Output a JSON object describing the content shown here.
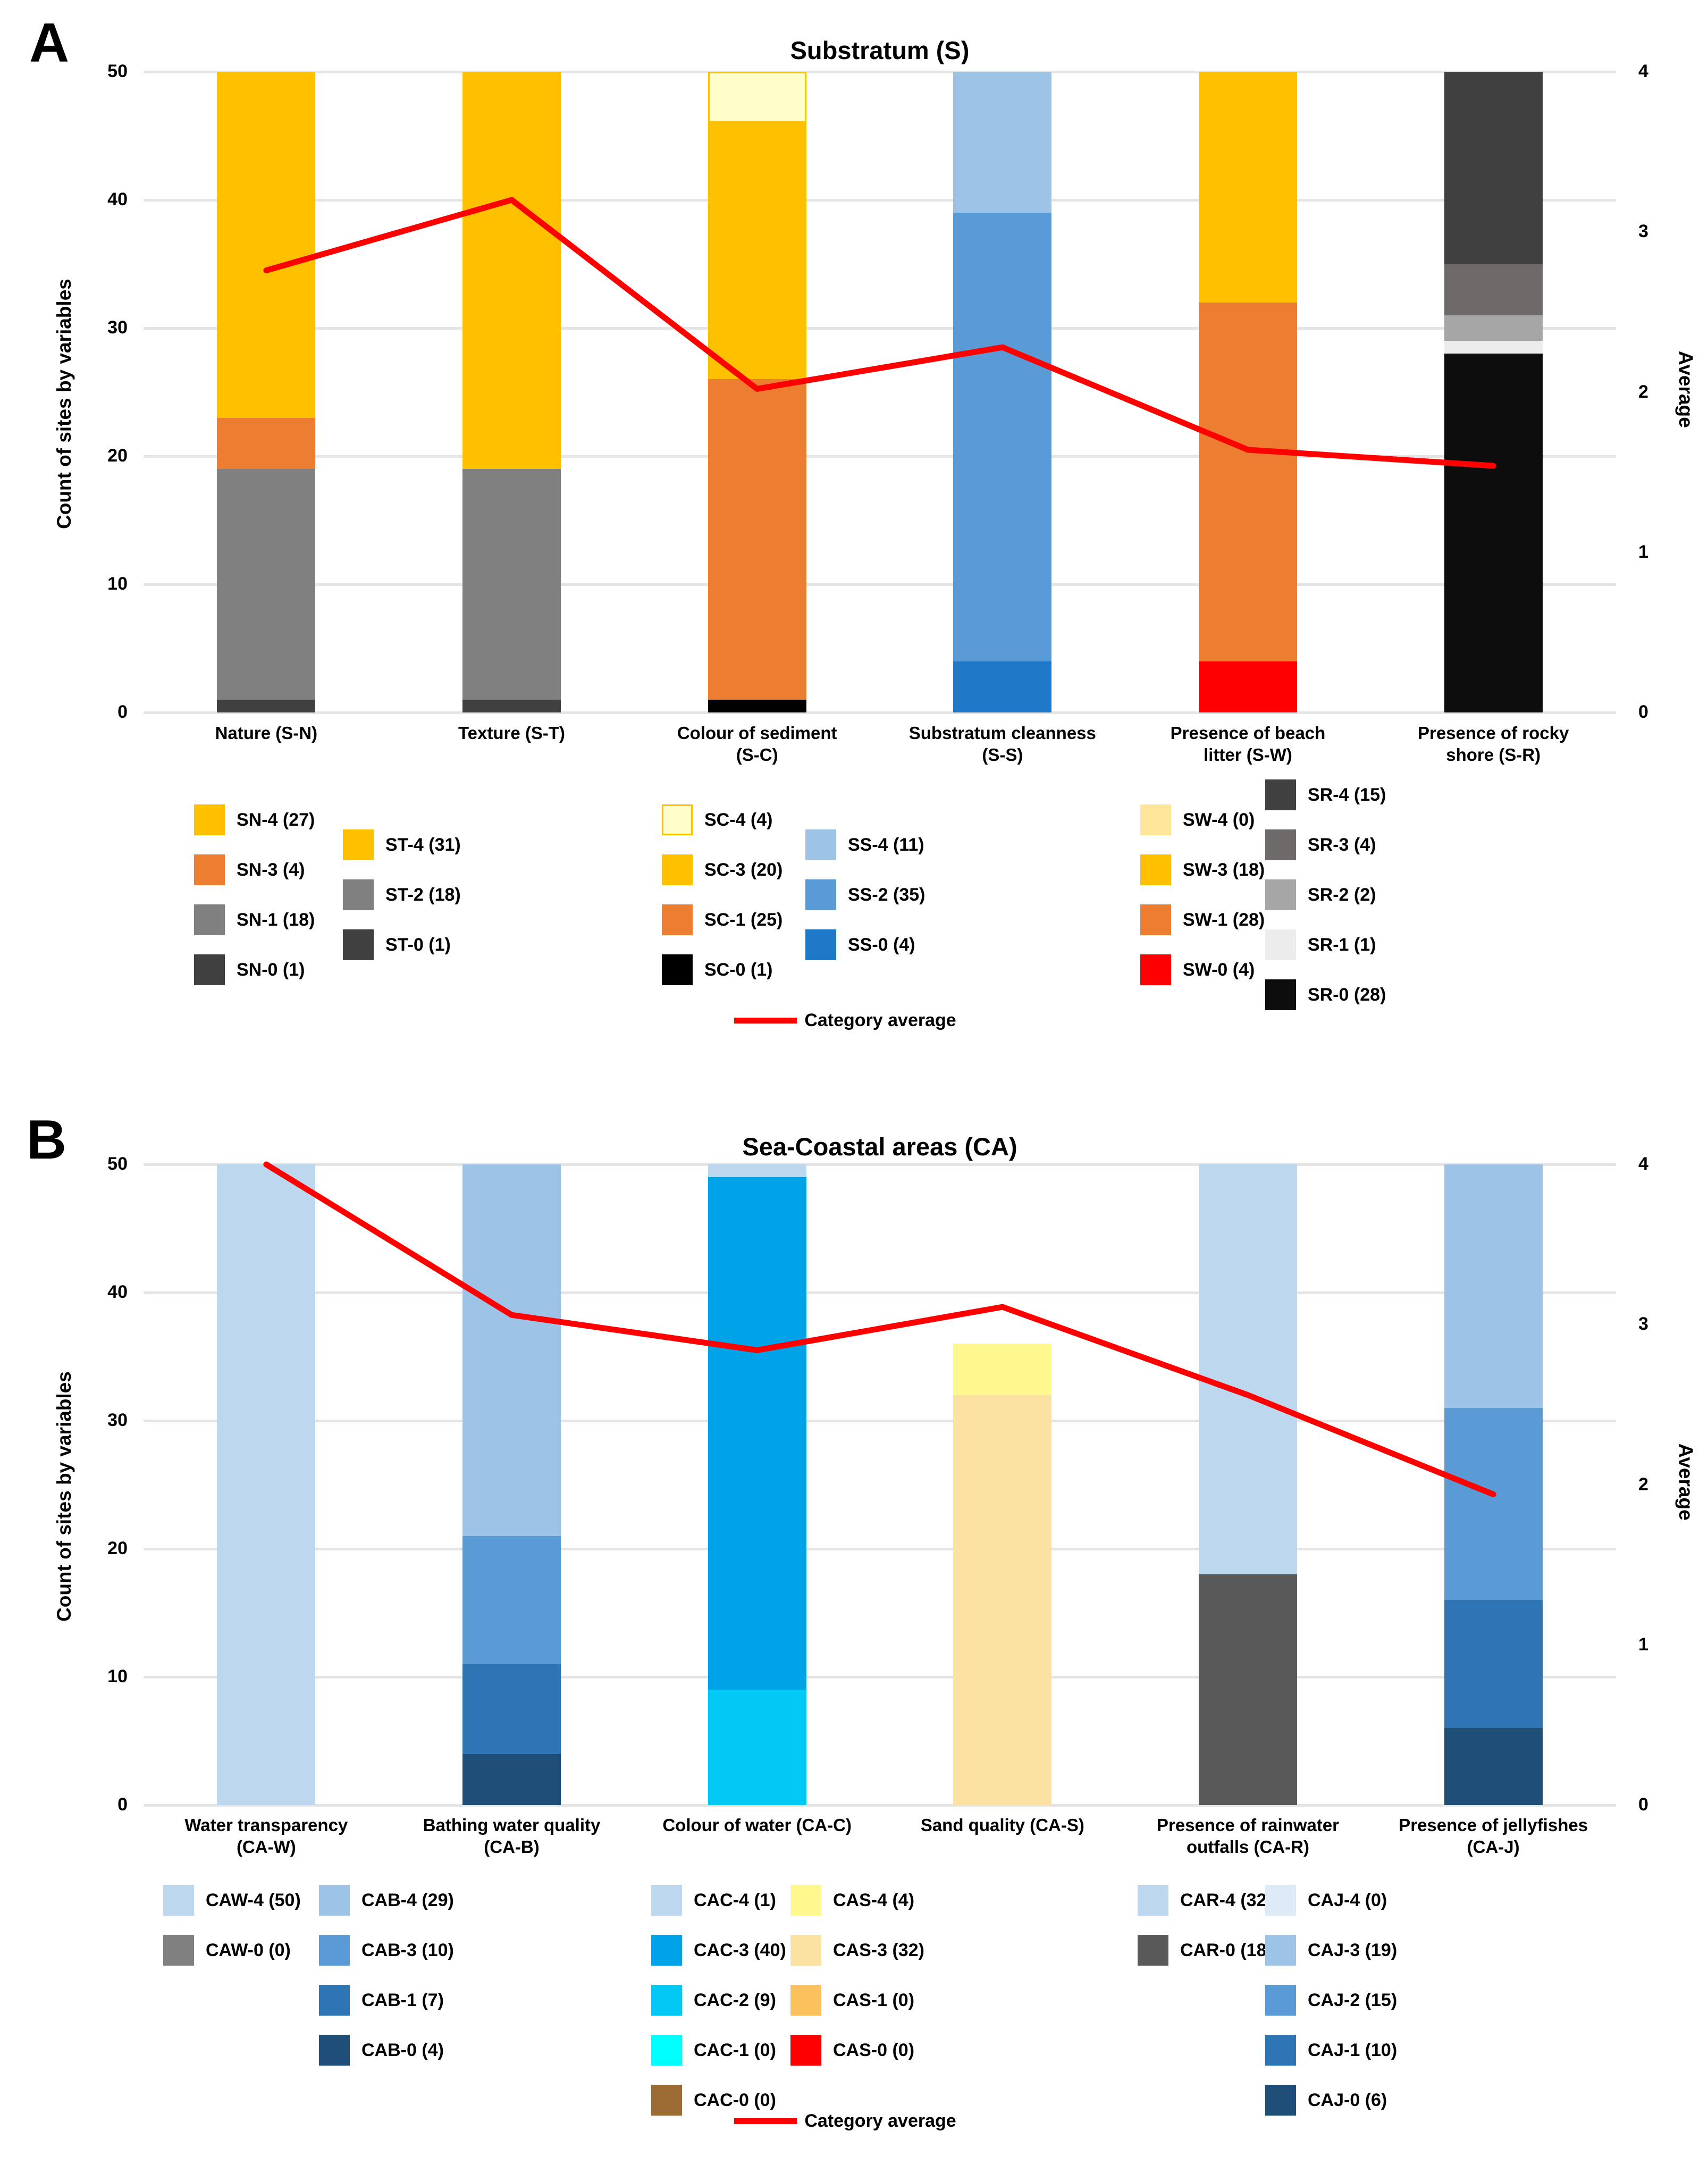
{
  "chart_data": [
    {
      "type": "bar",
      "subtype": "stacked-column-with-line",
      "panel": "A",
      "title": "Substratum (S)",
      "ylabel": "Count of sites by variables",
      "y2label": "Average",
      "ylim": [
        0,
        50
      ],
      "y2lim": [
        0,
        4
      ],
      "yticks": [
        0,
        10,
        20,
        30,
        40,
        50
      ],
      "y2ticks": [
        0,
        1,
        2,
        3,
        4
      ],
      "grid": true,
      "legend_position": "bottom",
      "line_series": {
        "name": "Category average",
        "color": "#FF0000",
        "values": [
          2.76,
          3.2,
          2.02,
          2.28,
          1.64,
          1.54
        ]
      },
      "categories": [
        {
          "label": "Nature (S-N)",
          "entries": [
            {
              "code": "SN-4",
              "count": 27,
              "color": "#FFC000"
            },
            {
              "code": "SN-3",
              "count": 4,
              "color": "#ED7D31"
            },
            {
              "code": "SN-1",
              "count": 18,
              "color": "#808080"
            },
            {
              "code": "SN-0",
              "count": 1,
              "color": "#404040"
            }
          ]
        },
        {
          "label": "Texture (S-T)",
          "entries": [
            {
              "code": "ST-4",
              "count": 31,
              "color": "#FFC000"
            },
            {
              "code": "ST-2",
              "count": 18,
              "color": "#808080"
            },
            {
              "code": "ST-0",
              "count": 1,
              "color": "#404040"
            }
          ]
        },
        {
          "label": "Colour of sediment\n(S-C)",
          "entries": [
            {
              "code": "SC-4",
              "count": 4,
              "color": "#FFFFCC",
              "border": "#FFC000"
            },
            {
              "code": "SC-3",
              "count": 20,
              "color": "#FFC000"
            },
            {
              "code": "SC-1",
              "count": 25,
              "color": "#ED7D31"
            },
            {
              "code": "SC-0",
              "count": 1,
              "color": "#000000"
            }
          ]
        },
        {
          "label": "Substratum cleanness\n(S-S)",
          "entries": [
            {
              "code": "SS-4",
              "count": 11,
              "color": "#9DC3E6"
            },
            {
              "code": "SS-2",
              "count": 35,
              "color": "#5B9BD5"
            },
            {
              "code": "SS-0",
              "count": 4,
              "color": "#1F78C8"
            }
          ]
        },
        {
          "label": "Presence of beach\nlitter (S-W)",
          "entries": [
            {
              "code": "SW-4",
              "count": 0,
              "color": "#FFE699"
            },
            {
              "code": "SW-3",
              "count": 18,
              "color": "#FFC000"
            },
            {
              "code": "SW-1",
              "count": 28,
              "color": "#ED7D31"
            },
            {
              "code": "SW-0",
              "count": 4,
              "color": "#FF0000"
            }
          ]
        },
        {
          "label": "Presence of rocky\nshore (S-R)",
          "entries": [
            {
              "code": "SR-4",
              "count": 15,
              "color": "#404040"
            },
            {
              "code": "SR-3",
              "count": 4,
              "color": "#6E6A6A"
            },
            {
              "code": "SR-2",
              "count": 2,
              "color": "#A6A6A6"
            },
            {
              "code": "SR-1",
              "count": 1,
              "color": "#ECECEC"
            },
            {
              "code": "SR-0",
              "count": 28,
              "color": "#0D0D0D"
            }
          ]
        }
      ]
    },
    {
      "type": "bar",
      "subtype": "stacked-column-with-line",
      "panel": "B",
      "title": "Sea-Coastal areas (CA)",
      "ylabel": "Count of sites by variables",
      "y2label": "Average",
      "ylim": [
        0,
        50
      ],
      "y2lim": [
        0,
        4
      ],
      "yticks": [
        0,
        10,
        20,
        30,
        40,
        50
      ],
      "y2ticks": [
        0,
        1,
        2,
        3,
        4
      ],
      "grid": true,
      "legend_position": "bottom",
      "line_series": {
        "name": "Category average",
        "color": "#FF0000",
        "values": [
          4.0,
          3.06,
          2.84,
          3.11,
          2.56,
          1.94
        ]
      },
      "categories": [
        {
          "label": "Water transparency\n(CA-W)",
          "entries": [
            {
              "code": "CAW-4",
              "count": 50,
              "color": "#BDD7EE"
            },
            {
              "code": "CAW-0",
              "count": 0,
              "color": "#808080"
            }
          ]
        },
        {
          "label": "Bathing water quality\n(CA-B)",
          "entries": [
            {
              "code": "CAB-4",
              "count": 29,
              "color": "#9DC3E6"
            },
            {
              "code": "CAB-3",
              "count": 10,
              "color": "#5B9BD5"
            },
            {
              "code": "CAB-1",
              "count": 7,
              "color": "#2E75B6"
            },
            {
              "code": "CAB-0",
              "count": 4,
              "color": "#1F4E79"
            }
          ]
        },
        {
          "label": "Colour of water (CA-C)",
          "entries": [
            {
              "code": "CAC-4",
              "count": 1,
              "color": "#BDD7EE"
            },
            {
              "code": "CAC-3",
              "count": 40,
              "color": "#00A2E8"
            },
            {
              "code": "CAC-2",
              "count": 9,
              "color": "#00C9F5"
            },
            {
              "code": "CAC-1",
              "count": 0,
              "color": "#00FFFF"
            },
            {
              "code": "CAC-0",
              "count": 0,
              "color": "#9C6B33"
            }
          ]
        },
        {
          "label": "Sand quality (CA-S)",
          "entries": [
            {
              "code": "CAS-4",
              "count": 4,
              "color": "#FFF88F"
            },
            {
              "code": "CAS-3",
              "count": 32,
              "color": "#FCE2A2"
            },
            {
              "code": "CAS-1",
              "count": 0,
              "color": "#FBC15C"
            },
            {
              "code": "CAS-0",
              "count": 0,
              "color": "#FF0000"
            }
          ]
        },
        {
          "label": "Presence of rainwater\noutfalls (CA-R)",
          "entries": [
            {
              "code": "CAR-4",
              "count": 32,
              "color": "#BDD7EE"
            },
            {
              "code": "CAR-0",
              "count": 18,
              "color": "#595959"
            }
          ]
        },
        {
          "label": "Presence of jellyfishes\n(CA-J)",
          "entries": [
            {
              "code": "CAJ-4",
              "count": 0,
              "color": "#DEEBF7"
            },
            {
              "code": "CAJ-3",
              "count": 19,
              "color": "#9DC3E6"
            },
            {
              "code": "CAJ-2",
              "count": 15,
              "color": "#5B9BD5"
            },
            {
              "code": "CAJ-1",
              "count": 10,
              "color": "#2E75B6"
            },
            {
              "code": "CAJ-0",
              "count": 6,
              "color": "#1F4E79"
            }
          ]
        }
      ]
    }
  ]
}
